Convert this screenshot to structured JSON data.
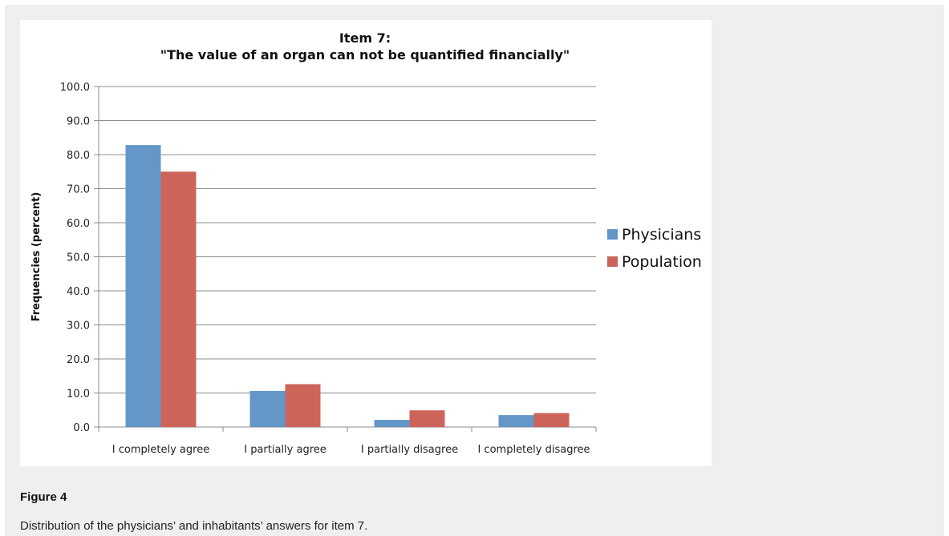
{
  "figure": {
    "label": "Figure 4",
    "caption": "Distribution of the physicians’ and inhabitants’ answers for item 7."
  },
  "colors": {
    "physicians": "#6496c8",
    "population": "#cc645a",
    "gridline": "#8c8c8c",
    "panel_background": "#ffffff",
    "page_background": "#efefef"
  },
  "chart_data": {
    "type": "bar",
    "title": [
      "Item 7:",
      "\"The value of an organ can not be quantified financially\""
    ],
    "xlabel": "",
    "ylabel": "Frequencies (percent)",
    "ylim": [
      0,
      100
    ],
    "yticks": [
      "0.0",
      "10.0",
      "20.0",
      "30.0",
      "40.0",
      "50.0",
      "60.0",
      "70.0",
      "80.0",
      "90.0",
      "100.0"
    ],
    "grid": true,
    "legend_position": "right",
    "categories": [
      "I completely agree",
      "I partially agree",
      "I partially disagree",
      "I completely disagree"
    ],
    "series": [
      {
        "name": "Physicians",
        "values": [
          82.8,
          10.6,
          2.1,
          3.5
        ]
      },
      {
        "name": "Population",
        "values": [
          75.0,
          12.6,
          4.9,
          4.1
        ]
      }
    ]
  }
}
